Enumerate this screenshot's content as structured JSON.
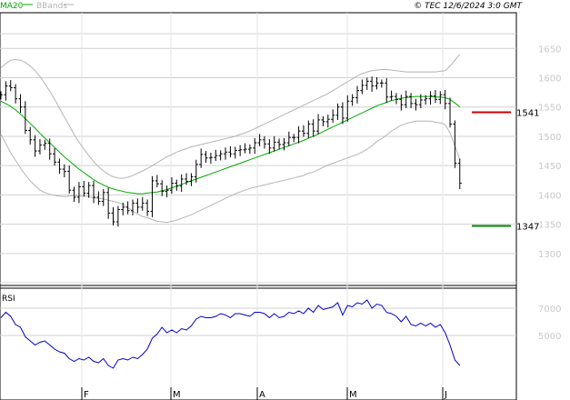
{
  "header": {
    "legend_ma": "MA20",
    "legend_bb": "BBands",
    "copyright": "© TEC 12/6/2024 3:0 GMT"
  },
  "colors": {
    "ma": "#00aa00",
    "bbands": "#b4b4b4",
    "price": "#000000",
    "resistance": "#cc0000",
    "support": "#008800",
    "rsi": "#0000cc",
    "grid": "#d0d0d0",
    "axis_text": "#c8c8c8"
  },
  "rsi_panel": {
    "label": "RSI"
  },
  "chart_data": [
    {
      "type": "candlestick",
      "title": "",
      "x_tick_labels": [
        "F",
        "M",
        "A",
        "M",
        "J"
      ],
      "y_tick_labels": [
        "1650",
        "1600",
        "1550",
        "1500",
        "1450",
        "1400",
        "1350",
        "1300"
      ],
      "ylim": [
        1250,
        1670
      ],
      "grid": true,
      "levels": [
        {
          "name": "resistance",
          "value": 1541,
          "label": "1541"
        },
        {
          "name": "support",
          "value": 1347,
          "label": "1347"
        }
      ],
      "series": [
        {
          "name": "price",
          "close": [
            1571,
            1586,
            1583,
            1564,
            1550,
            1510,
            1494,
            1475,
            1485,
            1488,
            1470,
            1456,
            1444,
            1440,
            1408,
            1396,
            1414,
            1403,
            1416,
            1396,
            1389,
            1404,
            1369,
            1354,
            1375,
            1379,
            1373,
            1386,
            1379,
            1386,
            1372,
            1424,
            1419,
            1406,
            1408,
            1420,
            1415,
            1427,
            1423,
            1431,
            1452,
            1469,
            1463,
            1464,
            1467,
            1470,
            1473,
            1470,
            1476,
            1477,
            1478,
            1480,
            1489,
            1494,
            1487,
            1480,
            1490,
            1486,
            1489,
            1498,
            1498,
            1509,
            1505,
            1521,
            1509,
            1528,
            1525,
            1529,
            1536,
            1550,
            1531,
            1560,
            1566,
            1578,
            1587,
            1594,
            1586,
            1591,
            1591,
            1567,
            1568,
            1563,
            1554,
            1568,
            1556,
            1554,
            1562,
            1564,
            1569,
            1563,
            1571,
            1556,
            1521,
            1454,
            1420
          ],
          "ma20": [
            1560,
            1556,
            1551,
            1545,
            1538,
            1530,
            1522,
            1514,
            1505,
            1497,
            1489,
            1481,
            1473,
            1465,
            1458,
            1451,
            1444,
            1438,
            1432,
            1426,
            1421,
            1417,
            1413,
            1410,
            1408,
            1406,
            1404,
            1403,
            1402,
            1402,
            1403,
            1404,
            1405,
            1407,
            1409,
            1412,
            1415,
            1418,
            1421,
            1424,
            1427,
            1430,
            1433,
            1436,
            1439,
            1442,
            1445,
            1448,
            1451,
            1454,
            1457,
            1460,
            1463,
            1466,
            1469,
            1472,
            1475,
            1478,
            1481,
            1484,
            1487,
            1490,
            1493,
            1497,
            1500,
            1504,
            1508,
            1512,
            1516,
            1520,
            1524,
            1528,
            1532,
            1536,
            1540,
            1544,
            1548,
            1552,
            1555,
            1558,
            1561,
            1563,
            1565,
            1566,
            1567,
            1568,
            1568,
            1568,
            1568,
            1567,
            1567,
            1566,
            1563,
            1557,
            1550
          ],
          "bb_upper": [
            1617,
            1624,
            1630,
            1631,
            1630,
            1626,
            1620,
            1612,
            1602,
            1590,
            1577,
            1563,
            1548,
            1533,
            1518,
            1503,
            1490,
            1478,
            1467,
            1457,
            1448,
            1441,
            1435,
            1431,
            1429,
            1428,
            1430,
            1433,
            1437,
            1441,
            1445,
            1450,
            1455,
            1460,
            1465,
            1469,
            1473,
            1476,
            1479,
            1482,
            1484,
            1486,
            1488,
            1490,
            1492,
            1494,
            1496,
            1498,
            1500,
            1503,
            1506,
            1509,
            1513,
            1517,
            1521,
            1525,
            1529,
            1533,
            1537,
            1541,
            1545,
            1549,
            1553,
            1557,
            1561,
            1565,
            1569,
            1573,
            1578,
            1583,
            1588,
            1593,
            1598,
            1603,
            1607,
            1610,
            1612,
            1613,
            1614,
            1614,
            1613,
            1612,
            1611,
            1610,
            1610,
            1610,
            1610,
            1610,
            1610,
            1610,
            1611,
            1612,
            1620,
            1630,
            1640
          ],
          "bb_lower": [
            1503,
            1488,
            1472,
            1459,
            1446,
            1434,
            1424,
            1416,
            1408,
            1404,
            1401,
            1399,
            1398,
            1397,
            1398,
            1399,
            1398,
            1398,
            1397,
            1395,
            1394,
            1393,
            1391,
            1389,
            1387,
            1384,
            1378,
            1373,
            1367,
            1363,
            1361,
            1358,
            1355,
            1354,
            1353,
            1355,
            1357,
            1360,
            1363,
            1366,
            1370,
            1374,
            1378,
            1382,
            1386,
            1390,
            1394,
            1398,
            1402,
            1405,
            1408,
            1411,
            1413,
            1415,
            1417,
            1419,
            1421,
            1423,
            1425,
            1427,
            1429,
            1431,
            1433,
            1437,
            1439,
            1443,
            1447,
            1451,
            1454,
            1457,
            1460,
            1463,
            1466,
            1469,
            1473,
            1478,
            1484,
            1491,
            1496,
            1502,
            1509,
            1514,
            1519,
            1522,
            1524,
            1526,
            1526,
            1526,
            1526,
            1524,
            1523,
            1520,
            1506,
            1484,
            1460
          ]
        }
      ]
    },
    {
      "type": "line",
      "title": "RSI",
      "y_tick_labels": [
        "7000",
        "5000"
      ],
      "ylim": [
        20,
        85
      ],
      "series": [
        {
          "name": "RSI",
          "values": [
            63,
            67,
            64,
            58,
            56,
            49,
            46,
            43,
            45,
            46,
            43,
            40,
            38,
            37,
            33,
            31,
            33,
            32,
            34,
            31,
            30,
            33,
            28,
            26,
            32,
            33,
            32,
            34,
            33,
            36,
            40,
            48,
            51,
            56,
            52,
            54,
            52,
            55,
            54,
            57,
            62,
            64,
            63,
            63,
            64,
            66,
            65,
            63,
            66,
            66,
            65,
            64,
            67,
            67,
            66,
            63,
            66,
            63,
            64,
            67,
            66,
            68,
            66,
            70,
            67,
            72,
            69,
            70,
            71,
            74,
            65,
            72,
            71,
            74,
            73,
            76,
            70,
            73,
            72,
            67,
            66,
            64,
            60,
            64,
            58,
            57,
            59,
            57,
            59,
            56,
            58,
            52,
            43,
            32,
            28
          ]
        }
      ]
    }
  ]
}
